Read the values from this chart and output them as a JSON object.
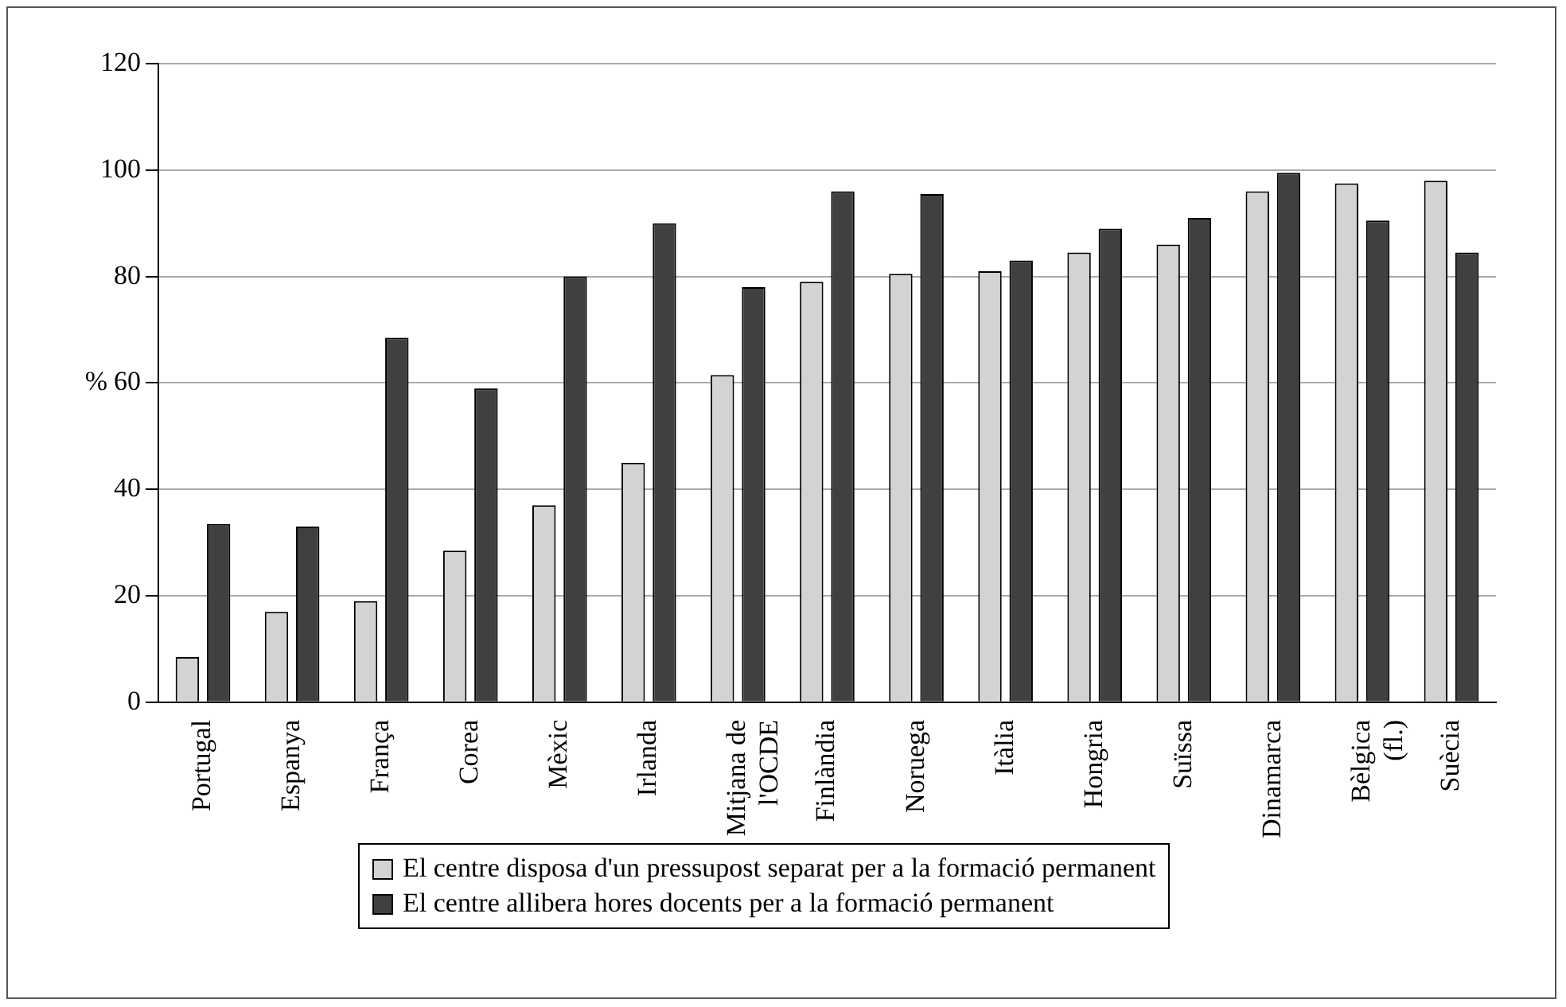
{
  "chart_data": {
    "type": "bar",
    "ylabel": "%",
    "categories": [
      "Portugal",
      "Espanya",
      "França",
      "Corea",
      "Mèxic",
      "Irlanda",
      "Mitjana de l'OCDE",
      "Finlàndia",
      "Noruega",
      "Itàlia",
      "Hongria",
      "Suïssa",
      "Dinamarca",
      "Bèlgica (fl.)",
      "Suècia"
    ],
    "series": [
      {
        "name": "El centre disposa d'un pressupost separat per a la formació permanent",
        "color": "#d3d3d3",
        "values": [
          8.5,
          17,
          19,
          28.5,
          37,
          45,
          61.5,
          79,
          80.5,
          81,
          84.5,
          86,
          96,
          97.5,
          98
        ]
      },
      {
        "name": "El centre allibera hores docents per a la formació permanent",
        "color": "#404040",
        "values": [
          33.5,
          33,
          68.5,
          59,
          80,
          90,
          78,
          96,
          95.5,
          83,
          89,
          91,
          99.5,
          90.5,
          84.5
        ]
      }
    ],
    "ylim": [
      0,
      120
    ],
    "yticks": [
      0,
      20,
      40,
      60,
      80,
      100,
      120
    ],
    "grid": "y",
    "legend": "bottom"
  }
}
